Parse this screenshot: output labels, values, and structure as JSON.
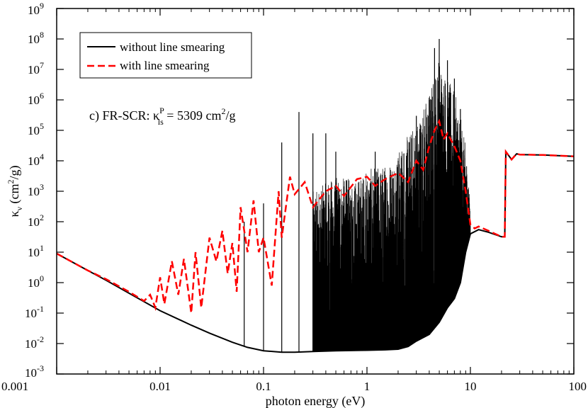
{
  "chart_data": {
    "type": "line",
    "xscale": "log",
    "yscale": "log",
    "xlim": [
      0.001,
      100
    ],
    "ylim": [
      0.001,
      1000000000
    ],
    "xlabel": "photon energy (eV)",
    "ylabel": {
      "base": "κ",
      "sub": "ν",
      "unit_open": " (cm",
      "unit_sup": "2",
      "unit_close": "/g)"
    },
    "x_ticks": [
      {
        "value": 0.001,
        "label": "0.001"
      },
      {
        "value": 0.01,
        "label": "0.01"
      },
      {
        "value": 0.1,
        "label": "0.1"
      },
      {
        "value": 1,
        "label": "1"
      },
      {
        "value": 10,
        "label": "10"
      },
      {
        "value": 100,
        "label": "100"
      }
    ],
    "y_ticks": [
      {
        "value": 0.001,
        "base": "10",
        "exp": "-3"
      },
      {
        "value": 0.01,
        "base": "10",
        "exp": "-2"
      },
      {
        "value": 0.1,
        "base": "10",
        "exp": "-1"
      },
      {
        "value": 1,
        "base": "10",
        "exp": "0"
      },
      {
        "value": 10,
        "base": "10",
        "exp": "1"
      },
      {
        "value": 100,
        "base": "10",
        "exp": "2"
      },
      {
        "value": 1000,
        "base": "10",
        "exp": "3"
      },
      {
        "value": 10000,
        "base": "10",
        "exp": "4"
      },
      {
        "value": 100000,
        "base": "10",
        "exp": "5"
      },
      {
        "value": 1000000,
        "base": "10",
        "exp": "6"
      },
      {
        "value": 10000000,
        "base": "10",
        "exp": "7"
      },
      {
        "value": 100000000,
        "base": "10",
        "exp": "8"
      },
      {
        "value": 1000000000,
        "base": "10",
        "exp": "9"
      }
    ],
    "legend": {
      "placement": "top-left",
      "entries": [
        {
          "label": "without line smearing",
          "color": "#000000",
          "style": "solid"
        },
        {
          "label": "with line smearing",
          "color": "#ff0000",
          "style": "dashed"
        }
      ]
    },
    "annotation": {
      "prefix": "c) FR-SCR: κ",
      "sup": "P",
      "sub": "ls",
      "middle": " = 5309 cm",
      "unit_sup": "2",
      "suffix": "/g"
    },
    "series": [
      {
        "name": "without line smearing",
        "color": "#000000",
        "style": "solid",
        "baseline": [
          [
            0.001,
            9
          ],
          [
            0.002,
            2.5
          ],
          [
            0.003,
            1.2
          ],
          [
            0.005,
            0.45
          ],
          [
            0.01,
            0.12
          ],
          [
            0.02,
            0.04
          ],
          [
            0.03,
            0.022
          ],
          [
            0.05,
            0.011
          ],
          [
            0.07,
            0.0075
          ],
          [
            0.1,
            0.0058
          ],
          [
            0.15,
            0.0052
          ],
          [
            0.2,
            0.0052
          ],
          [
            0.3,
            0.0055
          ],
          [
            0.5,
            0.0058
          ],
          [
            1,
            0.006
          ],
          [
            1.5,
            0.0062
          ],
          [
            2,
            0.0065
          ],
          [
            2.5,
            0.008
          ],
          [
            3,
            0.012
          ],
          [
            4,
            0.02
          ],
          [
            5,
            0.05
          ],
          [
            6,
            0.15
          ],
          [
            7,
            0.3
          ],
          [
            8,
            1
          ],
          [
            9,
            10
          ],
          [
            10,
            40
          ],
          [
            12,
            55
          ],
          [
            15,
            45
          ],
          [
            20,
            32
          ],
          [
            21.5,
            32
          ],
          [
            22,
            20000
          ],
          [
            25,
            11000
          ],
          [
            28,
            17000
          ],
          [
            30,
            16000
          ],
          [
            50,
            15500
          ],
          [
            100,
            14000
          ]
        ],
        "spikes": [
          [
            0.065,
            100
          ],
          [
            0.1,
            400
          ],
          [
            0.15,
            40000
          ],
          [
            0.22,
            400000
          ],
          [
            0.3,
            80000
          ],
          [
            0.4,
            80000
          ],
          [
            0.5,
            20000
          ],
          [
            0.7,
            500
          ],
          [
            1.2,
            20000
          ],
          [
            2,
            10000
          ],
          [
            3,
            300000
          ],
          [
            4,
            1000000
          ],
          [
            4.5,
            50000000
          ],
          [
            5,
            100000000
          ],
          [
            6,
            20000000
          ],
          [
            7,
            5000000
          ],
          [
            8,
            500000
          ]
        ],
        "envelope": [
          [
            0.3,
            1000
          ],
          [
            0.5,
            3000
          ],
          [
            0.8,
            2500
          ],
          [
            1,
            5000
          ],
          [
            1.5,
            8000
          ],
          [
            2,
            20000
          ],
          [
            3,
            200000
          ],
          [
            4,
            2000000
          ],
          [
            5,
            30000000
          ],
          [
            6,
            5000000
          ],
          [
            7,
            2000000
          ],
          [
            8,
            300000
          ],
          [
            9,
            30000
          ],
          [
            10,
            300
          ]
        ]
      },
      {
        "name": "with line smearing",
        "color": "#ff0000",
        "style": "dashed",
        "points": [
          [
            0.001,
            9
          ],
          [
            0.002,
            2.5
          ],
          [
            0.003,
            1.3
          ],
          [
            0.005,
            0.5
          ],
          [
            0.007,
            0.25
          ],
          [
            0.008,
            0.4
          ],
          [
            0.009,
            0.15
          ],
          [
            0.01,
            1.5
          ],
          [
            0.011,
            0.2
          ],
          [
            0.013,
            5
          ],
          [
            0.015,
            0.4
          ],
          [
            0.017,
            6
          ],
          [
            0.02,
            0.1
          ],
          [
            0.022,
            10
          ],
          [
            0.025,
            0.15
          ],
          [
            0.03,
            30
          ],
          [
            0.035,
            5
          ],
          [
            0.04,
            50
          ],
          [
            0.045,
            2
          ],
          [
            0.05,
            20
          ],
          [
            0.055,
            0.5
          ],
          [
            0.06,
            300
          ],
          [
            0.07,
            10
          ],
          [
            0.08,
            500
          ],
          [
            0.09,
            10
          ],
          [
            0.1,
            30
          ],
          [
            0.12,
            0.8
          ],
          [
            0.14,
            1000
          ],
          [
            0.15,
            30
          ],
          [
            0.18,
            3000
          ],
          [
            0.2,
            800
          ],
          [
            0.25,
            2000
          ],
          [
            0.3,
            300
          ],
          [
            0.4,
            1000
          ],
          [
            0.5,
            1500
          ],
          [
            0.6,
            700
          ],
          [
            0.8,
            2500
          ],
          [
            1,
            3000
          ],
          [
            1.2,
            1500
          ],
          [
            1.5,
            2500
          ],
          [
            2,
            4000
          ],
          [
            2.5,
            2000
          ],
          [
            3,
            10000
          ],
          [
            3.5,
            5000
          ],
          [
            4,
            30000
          ],
          [
            4.5,
            100000
          ],
          [
            5,
            200000
          ],
          [
            5.5,
            50000
          ],
          [
            6,
            80000
          ],
          [
            7,
            30000
          ],
          [
            8,
            10000
          ],
          [
            9,
            1000
          ],
          [
            10,
            80
          ],
          [
            11,
            60
          ],
          [
            12,
            70
          ],
          [
            15,
            50
          ],
          [
            20,
            32
          ],
          [
            21.5,
            32
          ],
          [
            22,
            20000
          ],
          [
            25,
            11000
          ],
          [
            28,
            17000
          ],
          [
            30,
            16000
          ],
          [
            50,
            15500
          ],
          [
            100,
            14000
          ]
        ]
      }
    ]
  }
}
